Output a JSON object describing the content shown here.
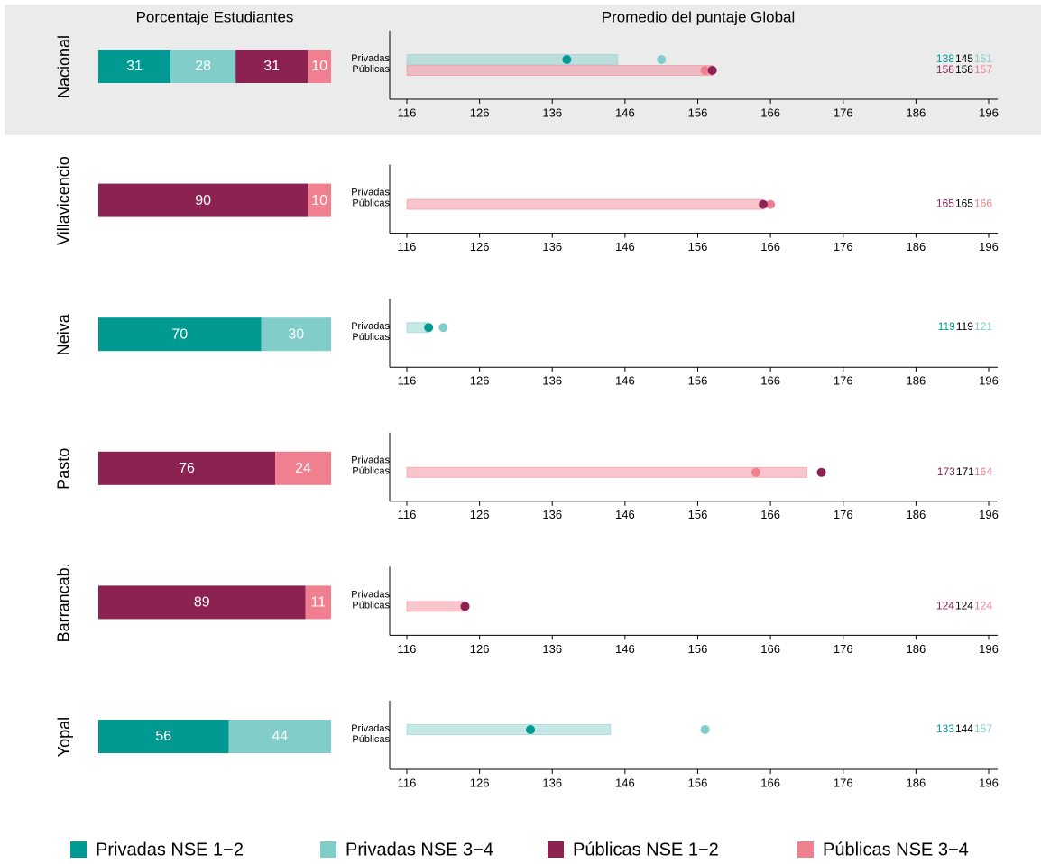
{
  "chart_data": {
    "type": "stacked-bar-dumbbell-panels",
    "left_title": "Porcentaje Estudiantes",
    "right_title": "Promedio del puntaje Global",
    "sector_labels": [
      "Privadas",
      "Públicas"
    ],
    "xlim": [
      116,
      196
    ],
    "xticks": [
      116,
      126,
      136,
      146,
      156,
      166,
      176,
      186,
      196
    ],
    "series": [
      {
        "name": "Privadas NSE 1−2",
        "color": "#009a93"
      },
      {
        "name": "Privadas NSE 3−4",
        "color": "#80cdc9"
      },
      {
        "name": "Públicas NSE 1−2",
        "color": "#8b2252"
      },
      {
        "name": "Públicas NSE 3−4",
        "color": "#f07f8f"
      }
    ],
    "rows": [
      {
        "label": "Nacional",
        "highlight": true,
        "shares": [
          31,
          28,
          31,
          10
        ],
        "sectors": [
          {
            "nse12": 138,
            "mean": 145,
            "nse34": 151
          },
          {
            "nse12": 158,
            "mean": 158,
            "nse34": 157
          }
        ]
      },
      {
        "label": "Villavicencio",
        "highlight": false,
        "shares": [
          null,
          null,
          90,
          10
        ],
        "sectors": [
          null,
          {
            "nse12": 165,
            "mean": 165,
            "nse34": 166
          }
        ]
      },
      {
        "label": "Neiva",
        "highlight": false,
        "shares": [
          70,
          30,
          null,
          null
        ],
        "sectors": [
          {
            "nse12": 119,
            "mean": 119,
            "nse34": 121
          },
          null
        ]
      },
      {
        "label": "Pasto",
        "highlight": false,
        "shares": [
          null,
          null,
          76,
          24
        ],
        "sectors": [
          null,
          {
            "nse12": 173,
            "mean": 171,
            "nse34": 164
          }
        ]
      },
      {
        "label": "Barrancab.",
        "highlight": false,
        "shares": [
          null,
          null,
          89,
          11
        ],
        "sectors": [
          null,
          {
            "nse12": 124,
            "mean": 124,
            "nse34": 124
          }
        ]
      },
      {
        "label": "Yopal",
        "highlight": false,
        "shares": [
          56,
          44,
          null,
          null
        ],
        "sectors": [
          {
            "nse12": 133,
            "mean": 144,
            "nse34": 157
          },
          null
        ]
      }
    ]
  }
}
